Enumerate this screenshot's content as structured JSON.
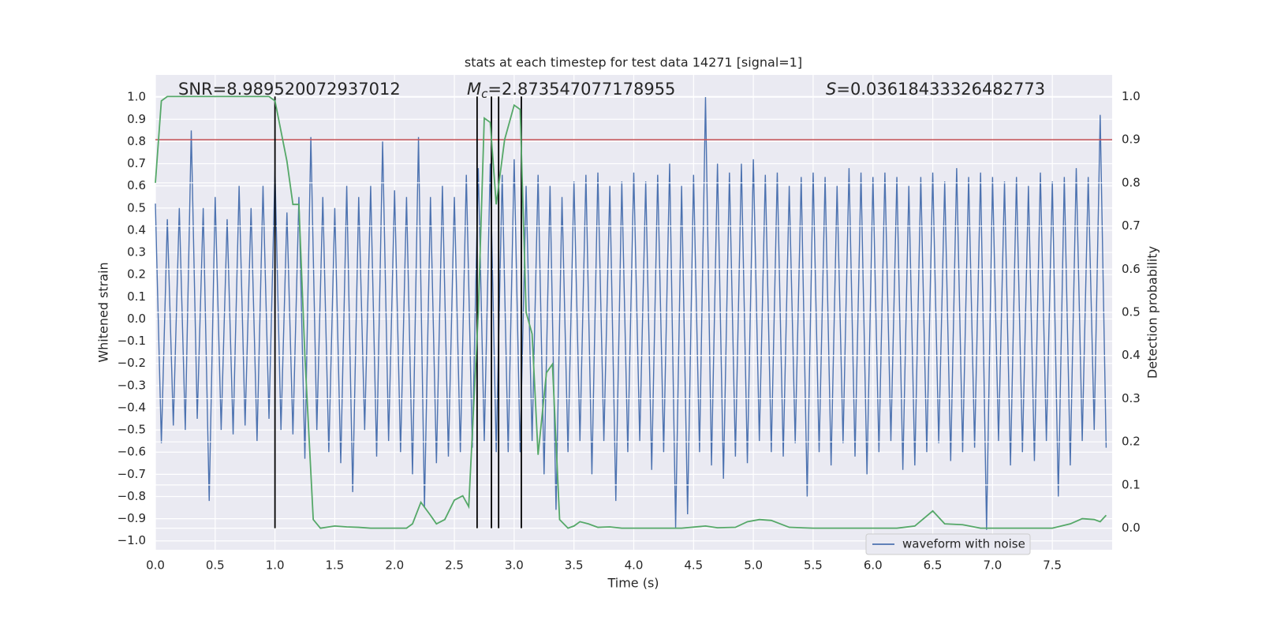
{
  "chart_data": {
    "type": "line",
    "title": "stats at each timestep for test data 14271 [signal=1]",
    "xlabel": "Time (s)",
    "ylabel": "Whitened strain",
    "y2label": "Detection probability",
    "xlim": [
      0,
      8.0
    ],
    "ylim": [
      -1.04,
      1.1
    ],
    "y2lim": [
      -0.05,
      1.05
    ],
    "xticks": [
      {
        "value": 0,
        "label": "0.0"
      },
      0.5,
      {
        "value": 1,
        "label": "1.0"
      },
      1.5,
      {
        "value": 2,
        "label": "2.0"
      },
      2.5,
      {
        "value": 3,
        "label": "3.0"
      },
      3.5,
      {
        "value": 4,
        "label": "4.0"
      },
      4.5,
      {
        "value": 5,
        "label": "5.0"
      },
      5.5,
      {
        "value": 6,
        "label": "6.0"
      },
      6.5,
      {
        "value": 7,
        "label": "7.0"
      },
      7.5
    ],
    "yticks": [
      {
        "value": -1,
        "label": "−1.0"
      },
      {
        "value": -0.9,
        "label": "−0.9"
      },
      {
        "value": -0.8,
        "label": "−0.8"
      },
      {
        "value": -0.7,
        "label": "−0.7"
      },
      {
        "value": -0.6,
        "label": "−0.6"
      },
      {
        "value": -0.5,
        "label": "−0.5"
      },
      {
        "value": -0.4,
        "label": "−0.4"
      },
      {
        "value": -0.3,
        "label": "−0.3"
      },
      {
        "value": -0.2,
        "label": "−0.2"
      },
      {
        "value": -0.1,
        "label": "−0.1"
      },
      {
        "value": 0,
        "label": "0.0"
      },
      0.1,
      0.2,
      0.3,
      0.4,
      0.5,
      0.6,
      0.7,
      0.8,
      0.9,
      {
        "value": 1,
        "label": "1.0"
      }
    ],
    "y2ticks": [
      {
        "value": 0,
        "label": "0.0"
      },
      0.1,
      0.2,
      0.3,
      0.4,
      0.5,
      0.6,
      0.7,
      0.8,
      0.9,
      {
        "value": 1,
        "label": "1.0"
      }
    ],
    "grid": true,
    "legend": "lower right",
    "annotations": [
      {
        "text": "SNR=8.989520072937012"
      },
      {
        "symbol": "M",
        "subscript": "c",
        "text": "=2.873547077178955"
      },
      {
        "symbol": "S",
        "text": "=0.03618433326482773"
      }
    ],
    "hlines": [
      {
        "value": 0.9,
        "axis": "y2",
        "color": "#c44e52"
      }
    ],
    "vlines": {
      "x": [
        1.0,
        2.69,
        2.81,
        2.87,
        3.06
      ],
      "ymin": 0,
      "ymax": 1,
      "axis": "y2",
      "color": "#000000"
    },
    "series": [
      {
        "name": "waveform with noise",
        "color": "#4c72b0",
        "x": [
          0,
          0.05,
          0.1,
          0.15,
          0.2,
          0.25,
          0.3,
          0.35,
          0.4,
          0.45,
          0.5,
          0.55,
          0.6,
          0.65,
          0.7,
          0.75,
          0.8,
          0.85,
          0.9,
          0.95,
          1,
          1.05,
          1.1,
          1.15,
          1.2,
          1.25,
          1.3,
          1.35,
          1.4,
          1.45,
          1.5,
          1.55,
          1.6,
          1.65,
          1.7,
          1.75,
          1.8,
          1.85,
          1.9,
          1.95,
          2,
          2.05,
          2.1,
          2.15,
          2.2,
          2.25,
          2.3,
          2.35,
          2.4,
          2.45,
          2.5,
          2.55,
          2.6,
          2.65,
          2.7,
          2.75,
          2.8,
          2.85,
          2.9,
          2.95,
          3,
          3.05,
          3.1,
          3.15,
          3.2,
          3.25,
          3.3,
          3.35,
          3.4,
          3.45,
          3.5,
          3.55,
          3.6,
          3.65,
          3.7,
          3.75,
          3.8,
          3.85,
          3.9,
          3.95,
          4,
          4.05,
          4.1,
          4.15,
          4.2,
          4.25,
          4.3,
          4.35,
          4.4,
          4.45,
          4.5,
          4.55,
          4.6,
          4.65,
          4.7,
          4.75,
          4.8,
          4.85,
          4.9,
          4.95,
          5,
          5.05,
          5.1,
          5.15,
          5.2,
          5.25,
          5.3,
          5.35,
          5.4,
          5.45,
          5.5,
          5.55,
          5.6,
          5.65,
          5.7,
          5.75,
          5.8,
          5.85,
          5.9,
          5.95,
          6,
          6.05,
          6.1,
          6.15,
          6.2,
          6.25,
          6.3,
          6.35,
          6.4,
          6.45,
          6.5,
          6.55,
          6.6,
          6.65,
          6.7,
          6.75,
          6.8,
          6.85,
          6.9,
          6.95,
          7,
          7.05,
          7.1,
          7.15,
          7.2,
          7.25,
          7.3,
          7.35,
          7.4,
          7.45,
          7.5,
          7.55,
          7.6,
          7.65,
          7.7,
          7.75,
          7.8,
          7.85,
          7.9,
          7.95
        ],
        "values": [
          0.52,
          -0.56,
          0.45,
          -0.48,
          0.5,
          -0.5,
          0.85,
          -0.45,
          0.5,
          -0.82,
          0.55,
          -0.5,
          0.45,
          -0.52,
          0.6,
          -0.48,
          0.5,
          -0.55,
          0.6,
          -0.45,
          0.67,
          -0.5,
          0.48,
          -0.52,
          0.55,
          -0.63,
          0.82,
          -0.5,
          0.55,
          -0.6,
          0.5,
          -0.65,
          0.6,
          -0.78,
          0.55,
          -0.5,
          0.6,
          -0.62,
          0.8,
          -0.55,
          0.58,
          -0.6,
          0.55,
          -0.7,
          0.82,
          -0.85,
          0.55,
          -0.65,
          0.6,
          -0.62,
          0.55,
          -0.6,
          0.65,
          -0.58,
          0.68,
          -0.55,
          0.7,
          -0.6,
          0.65,
          -0.6,
          0.72,
          -0.6,
          0.6,
          -0.55,
          0.65,
          -0.7,
          0.6,
          -0.86,
          0.55,
          -0.6,
          0.62,
          -0.55,
          0.65,
          -0.7,
          0.66,
          -0.55,
          0.6,
          -0.82,
          0.62,
          -0.6,
          0.66,
          -0.55,
          0.62,
          -0.68,
          0.65,
          -0.6,
          0.7,
          -0.94,
          0.6,
          -0.88,
          0.65,
          -0.6,
          1.0,
          -0.66,
          0.7,
          -0.72,
          0.66,
          -0.62,
          0.7,
          -0.65,
          0.72,
          -0.55,
          0.65,
          -0.6,
          0.66,
          -0.62,
          0.6,
          -0.56,
          0.64,
          -0.8,
          0.66,
          -0.6,
          0.64,
          -0.66,
          0.6,
          -0.56,
          0.68,
          -0.62,
          0.66,
          -0.7,
          0.64,
          -0.6,
          0.66,
          -0.55,
          0.64,
          -0.68,
          0.6,
          -0.66,
          0.64,
          -0.6,
          0.66,
          -0.56,
          0.62,
          -0.64,
          0.68,
          -0.6,
          0.64,
          -0.58,
          0.66,
          -0.95,
          0.64,
          -0.55,
          0.62,
          -0.66,
          0.64,
          -0.6,
          0.6,
          -0.64,
          0.66,
          -0.55,
          0.62,
          -0.8,
          0.64,
          -0.66,
          0.68,
          -0.55,
          0.64,
          -0.5,
          0.92,
          -0.58
        ]
      },
      {
        "color": "#55a868",
        "axis": "y2",
        "x": [
          0,
          0.05,
          0.1,
          0.2,
          0.4,
          0.6,
          0.8,
          0.95,
          1.0,
          1.1,
          1.15,
          1.2,
          1.25,
          1.32,
          1.38,
          1.5,
          1.6,
          1.7,
          1.8,
          2.1,
          2.15,
          2.22,
          2.3,
          2.35,
          2.42,
          2.5,
          2.57,
          2.62,
          2.7,
          2.75,
          2.8,
          2.85,
          2.92,
          3.0,
          3.05,
          3.1,
          3.15,
          3.2,
          3.27,
          3.32,
          3.38,
          3.45,
          3.5,
          3.55,
          3.62,
          3.7,
          3.8,
          3.9,
          4.2,
          4.4,
          4.6,
          4.7,
          4.85,
          4.95,
          5.05,
          5.15,
          5.3,
          5.5,
          6.2,
          6.35,
          6.5,
          6.6,
          6.75,
          6.9,
          7.5,
          7.65,
          7.75,
          7.85,
          7.9,
          7.95
        ],
        "values": [
          0.8,
          0.99,
          1.0,
          1.0,
          1.0,
          1.0,
          1.0,
          1.0,
          0.99,
          0.85,
          0.75,
          0.75,
          0.4,
          0.02,
          0.0,
          0.005,
          0.003,
          0.002,
          0.0,
          0.0,
          0.01,
          0.06,
          0.03,
          0.01,
          0.02,
          0.065,
          0.075,
          0.05,
          0.5,
          0.95,
          0.94,
          0.75,
          0.9,
          0.98,
          0.97,
          0.5,
          0.45,
          0.17,
          0.36,
          0.38,
          0.02,
          0.0,
          0.005,
          0.015,
          0.01,
          0.002,
          0.003,
          0.0,
          0.0,
          0.0,
          0.005,
          0.001,
          0.002,
          0.015,
          0.02,
          0.018,
          0.002,
          0.0,
          0.0,
          0.005,
          0.04,
          0.01,
          0.008,
          0.0,
          0.0,
          0.01,
          0.022,
          0.02,
          0.015,
          0.03
        ]
      }
    ]
  }
}
